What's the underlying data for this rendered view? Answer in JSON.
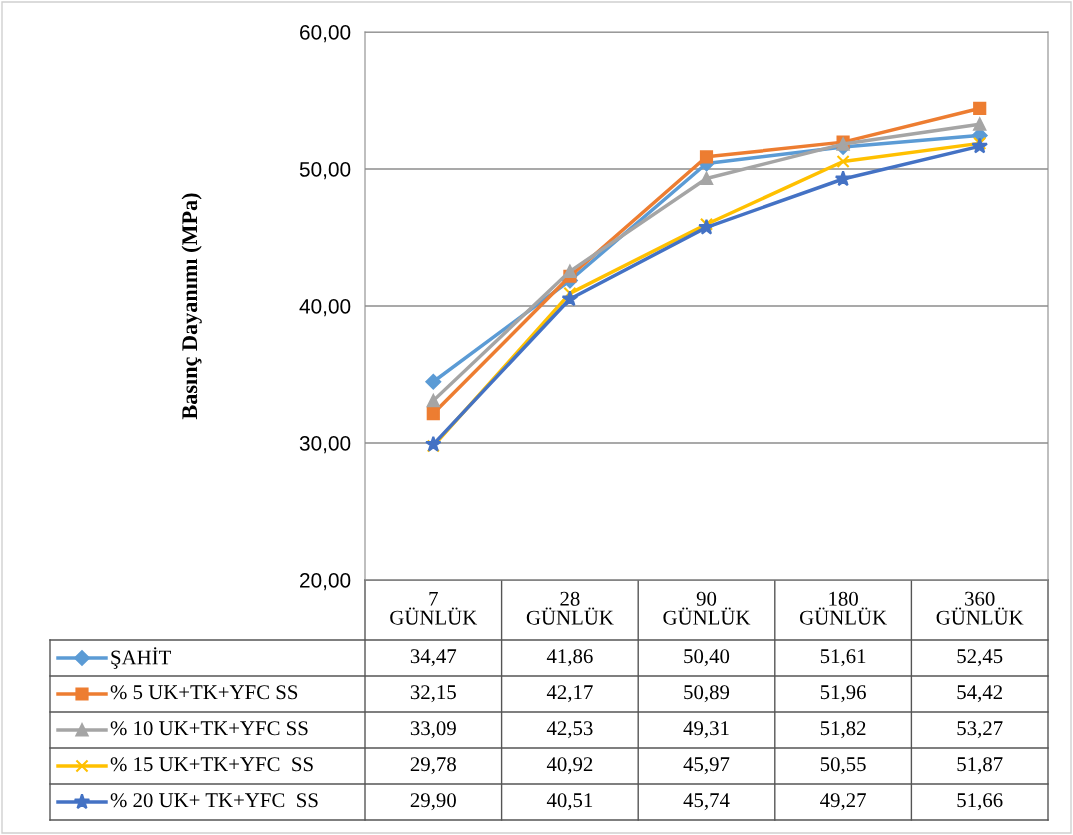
{
  "chart_data": {
    "type": "line",
    "ylabel": "Basınç Dayanımı (MPa)",
    "categories": [
      "7\nGÜNLÜK",
      "28\nGÜNLÜK",
      "90\nGÜNLÜK",
      "180\nGÜNLÜK",
      "360\nGÜNLÜK"
    ],
    "ylim": [
      20,
      60
    ],
    "yticks": [
      {
        "value": 20,
        "label": "20,00"
      },
      {
        "value": 30,
        "label": "30,00"
      },
      {
        "value": 40,
        "label": "40,00"
      },
      {
        "value": 50,
        "label": "50,00"
      },
      {
        "value": 60,
        "label": "60,00"
      }
    ],
    "grid": "y",
    "legend": "bottom left",
    "series": [
      {
        "name": "ŞAHİT",
        "color": "#5b9bd5",
        "marker": "diamond",
        "values": [
          34.47,
          41.86,
          50.4,
          51.61,
          52.45
        ],
        "value_labels": [
          "34,47",
          "41,86",
          "50,40",
          "51,61",
          "52,45"
        ]
      },
      {
        "name": "% 5 UK+TK+YFC SS",
        "color": "#ed7d31",
        "marker": "square",
        "values": [
          32.15,
          42.17,
          50.89,
          51.96,
          54.42
        ],
        "value_labels": [
          "32,15",
          "42,17",
          "50,89",
          "51,96",
          "54,42"
        ]
      },
      {
        "name": "% 10 UK+TK+YFC SS",
        "color": "#a5a5a5",
        "marker": "triangle",
        "values": [
          33.09,
          42.53,
          49.31,
          51.82,
          53.27
        ],
        "value_labels": [
          "33,09",
          "42,53",
          "49,31",
          "51,82",
          "53,27"
        ]
      },
      {
        "name": "% 15 UK+TK+YFC  SS",
        "color": "#ffc000",
        "marker": "cross",
        "values": [
          29.78,
          40.92,
          45.97,
          50.55,
          51.87
        ],
        "value_labels": [
          "29,78",
          "40,92",
          "45,97",
          "50,55",
          "51,87"
        ]
      },
      {
        "name": "% 20 UK+ TK+YFC  SS",
        "color": "#4472c4",
        "marker": "star",
        "values": [
          29.9,
          40.51,
          45.74,
          49.27,
          51.66
        ],
        "value_labels": [
          "29,90",
          "40,51",
          "45,74",
          "49,27",
          "51,66"
        ]
      }
    ]
  }
}
